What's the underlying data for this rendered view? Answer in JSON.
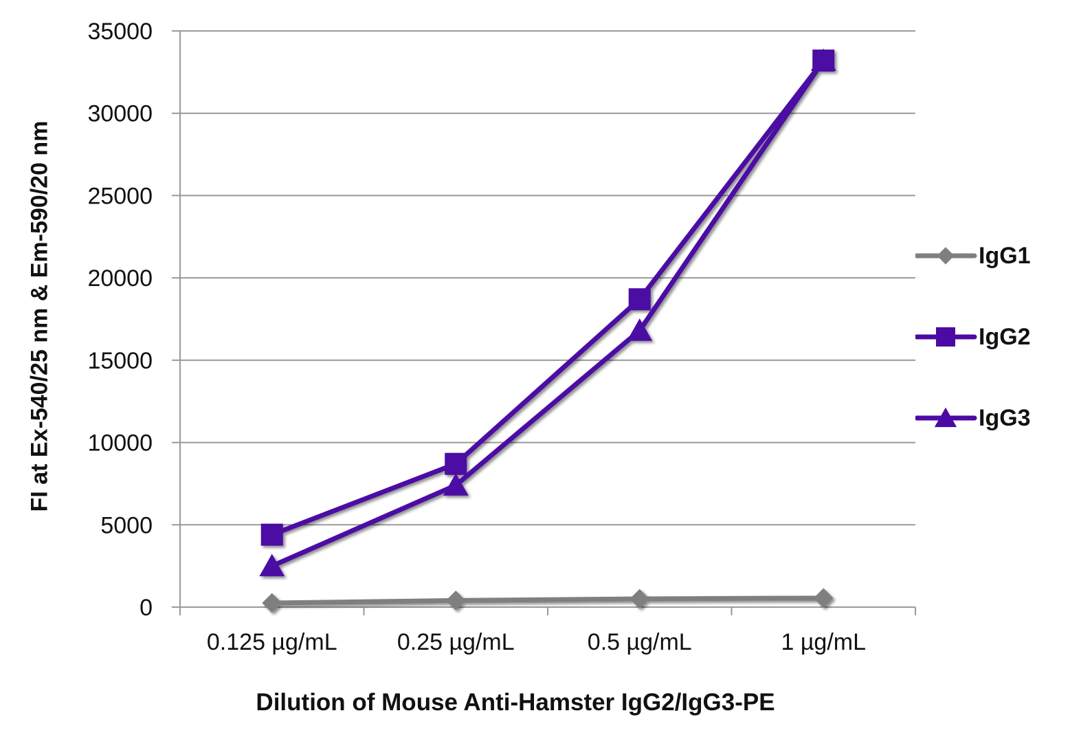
{
  "chart_data": {
    "type": "line",
    "xlabel": "Dilution of Mouse Anti-Hamster IgG2/IgG3-PE",
    "ylabel": "FI at Ex-540/25 nm & Em-590/20 nm",
    "categories": [
      "0.125 µg/mL",
      "0.25 µg/mL",
      "0.5 µg/mL",
      "1 µg/mL"
    ],
    "ylim": [
      0,
      35000
    ],
    "yticks": [
      0,
      5000,
      10000,
      15000,
      20000,
      25000,
      30000,
      35000
    ],
    "grid": true,
    "legend_position": "right",
    "series": [
      {
        "name": "IgG1",
        "marker": "diamond",
        "color": "#7f7f7f",
        "values": [
          250,
          400,
          500,
          550
        ]
      },
      {
        "name": "IgG2",
        "marker": "square",
        "color": "#4b0aa3",
        "values": [
          4400,
          8700,
          18700,
          33200
        ]
      },
      {
        "name": "IgG3",
        "marker": "triangle",
        "color": "#4b0aa3",
        "values": [
          2500,
          7400,
          16800,
          33200
        ]
      }
    ]
  }
}
